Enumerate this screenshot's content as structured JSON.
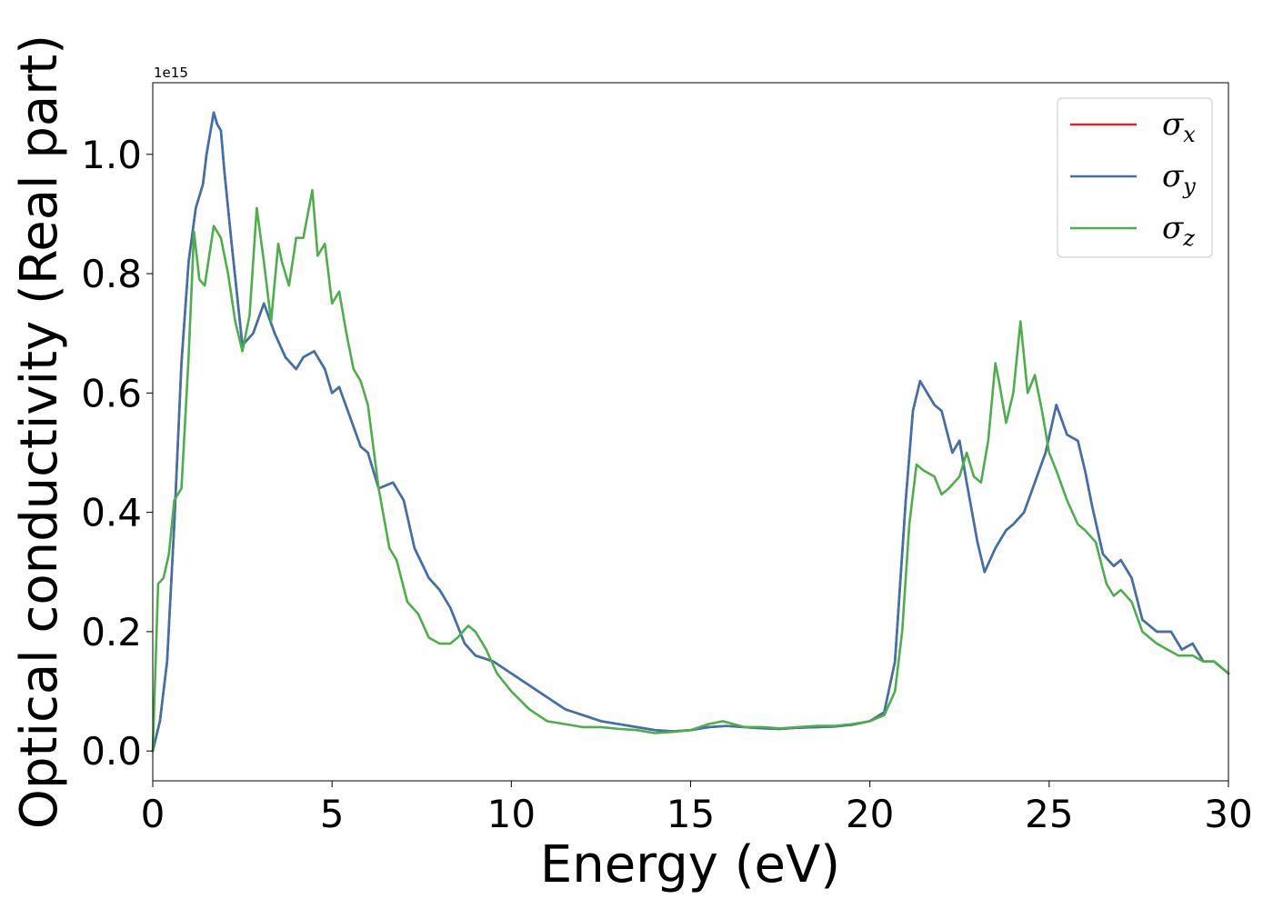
{
  "chart_data": {
    "type": "line",
    "xlabel": "Energy (eV)",
    "ylabel": "Optical conductivity (Real part)",
    "offset_text": "1e15",
    "xlim": [
      0,
      30
    ],
    "ylim": [
      -0.05,
      1.12
    ],
    "x_ticks": [
      0,
      5,
      10,
      15,
      20,
      25,
      30
    ],
    "x_tick_labels": [
      "0",
      "5",
      "10",
      "15",
      "20",
      "25",
      "30"
    ],
    "y_ticks": [
      0.0,
      0.2,
      0.4,
      0.6,
      0.8,
      1.0
    ],
    "y_tick_labels": [
      "0.0",
      "0.2",
      "0.4",
      "0.6",
      "0.8",
      "1.0"
    ],
    "grid": false,
    "legend_position": "top-right",
    "series": [
      {
        "name": "σx",
        "legend_base": "σ",
        "legend_sub": "x",
        "color": "#d62728",
        "x": [
          0,
          0.2,
          0.4,
          0.6,
          0.8,
          1.0,
          1.2,
          1.4,
          1.5,
          1.7,
          1.8,
          1.9,
          2.0,
          2.2,
          2.5,
          2.8,
          3.1,
          3.4,
          3.7,
          4.0,
          4.2,
          4.5,
          4.8,
          5.0,
          5.2,
          5.5,
          5.8,
          6.0,
          6.3,
          6.7,
          7.0,
          7.3,
          7.7,
          8.0,
          8.3,
          8.7,
          9.0,
          9.5,
          10.0,
          10.5,
          11.0,
          11.5,
          12.0,
          12.5,
          13.0,
          13.5,
          14.0,
          14.5,
          15.0,
          15.5,
          16.0,
          16.5,
          17.0,
          17.5,
          18.0,
          18.5,
          19.0,
          19.5,
          20.0,
          20.4,
          20.7,
          21.0,
          21.2,
          21.4,
          21.6,
          21.8,
          22.0,
          22.3,
          22.5,
          22.7,
          23.0,
          23.2,
          23.5,
          23.8,
          24.0,
          24.3,
          24.6,
          24.9,
          25.2,
          25.5,
          25.8,
          26.0,
          26.2,
          26.5,
          26.8,
          27.0,
          27.3,
          27.6,
          28.0,
          28.4,
          28.7,
          29.0,
          29.3,
          29.6,
          30.0
        ],
        "values": [
          0.0,
          0.05,
          0.15,
          0.38,
          0.65,
          0.82,
          0.91,
          0.95,
          1.0,
          1.07,
          1.05,
          1.04,
          0.97,
          0.85,
          0.68,
          0.7,
          0.75,
          0.7,
          0.66,
          0.64,
          0.66,
          0.67,
          0.64,
          0.6,
          0.61,
          0.56,
          0.51,
          0.5,
          0.44,
          0.45,
          0.42,
          0.34,
          0.29,
          0.27,
          0.24,
          0.18,
          0.16,
          0.15,
          0.13,
          0.11,
          0.09,
          0.07,
          0.06,
          0.05,
          0.045,
          0.04,
          0.035,
          0.033,
          0.035,
          0.04,
          0.042,
          0.04,
          0.038,
          0.037,
          0.039,
          0.04,
          0.041,
          0.044,
          0.05,
          0.065,
          0.15,
          0.42,
          0.57,
          0.62,
          0.6,
          0.58,
          0.57,
          0.5,
          0.52,
          0.45,
          0.35,
          0.3,
          0.34,
          0.37,
          0.38,
          0.4,
          0.45,
          0.5,
          0.58,
          0.53,
          0.52,
          0.47,
          0.41,
          0.33,
          0.31,
          0.32,
          0.29,
          0.22,
          0.2,
          0.2,
          0.17,
          0.18,
          0.15,
          0.15,
          0.13
        ]
      },
      {
        "name": "σy",
        "legend_base": "σ",
        "legend_sub": "y",
        "color": "#3d72ad",
        "x": [
          0,
          0.2,
          0.4,
          0.6,
          0.8,
          1.0,
          1.2,
          1.4,
          1.5,
          1.7,
          1.8,
          1.9,
          2.0,
          2.2,
          2.5,
          2.8,
          3.1,
          3.4,
          3.7,
          4.0,
          4.2,
          4.5,
          4.8,
          5.0,
          5.2,
          5.5,
          5.8,
          6.0,
          6.3,
          6.7,
          7.0,
          7.3,
          7.7,
          8.0,
          8.3,
          8.7,
          9.0,
          9.5,
          10.0,
          10.5,
          11.0,
          11.5,
          12.0,
          12.5,
          13.0,
          13.5,
          14.0,
          14.5,
          15.0,
          15.5,
          16.0,
          16.5,
          17.0,
          17.5,
          18.0,
          18.5,
          19.0,
          19.5,
          20.0,
          20.4,
          20.7,
          21.0,
          21.2,
          21.4,
          21.6,
          21.8,
          22.0,
          22.3,
          22.5,
          22.7,
          23.0,
          23.2,
          23.5,
          23.8,
          24.0,
          24.3,
          24.6,
          24.9,
          25.2,
          25.5,
          25.8,
          26.0,
          26.2,
          26.5,
          26.8,
          27.0,
          27.3,
          27.6,
          28.0,
          28.4,
          28.7,
          29.0,
          29.3,
          29.6,
          30.0
        ],
        "values": [
          0.0,
          0.05,
          0.15,
          0.38,
          0.65,
          0.82,
          0.91,
          0.95,
          1.0,
          1.07,
          1.05,
          1.04,
          0.97,
          0.85,
          0.68,
          0.7,
          0.75,
          0.7,
          0.66,
          0.64,
          0.66,
          0.67,
          0.64,
          0.6,
          0.61,
          0.56,
          0.51,
          0.5,
          0.44,
          0.45,
          0.42,
          0.34,
          0.29,
          0.27,
          0.24,
          0.18,
          0.16,
          0.15,
          0.13,
          0.11,
          0.09,
          0.07,
          0.06,
          0.05,
          0.045,
          0.04,
          0.035,
          0.033,
          0.035,
          0.04,
          0.042,
          0.04,
          0.038,
          0.037,
          0.039,
          0.04,
          0.041,
          0.044,
          0.05,
          0.065,
          0.15,
          0.42,
          0.57,
          0.62,
          0.6,
          0.58,
          0.57,
          0.5,
          0.52,
          0.45,
          0.35,
          0.3,
          0.34,
          0.37,
          0.38,
          0.4,
          0.45,
          0.5,
          0.58,
          0.53,
          0.52,
          0.47,
          0.41,
          0.33,
          0.31,
          0.32,
          0.29,
          0.22,
          0.2,
          0.2,
          0.17,
          0.18,
          0.15,
          0.15,
          0.13
        ]
      },
      {
        "name": "σz",
        "legend_base": "σ",
        "legend_sub": "z",
        "color": "#4daf4a",
        "x": [
          0,
          0.15,
          0.3,
          0.45,
          0.6,
          0.8,
          1.0,
          1.15,
          1.3,
          1.45,
          1.7,
          1.9,
          2.1,
          2.3,
          2.5,
          2.7,
          2.9,
          3.1,
          3.3,
          3.5,
          3.6,
          3.8,
          4.0,
          4.2,
          4.45,
          4.6,
          4.8,
          5.0,
          5.2,
          5.4,
          5.6,
          5.8,
          6.0,
          6.3,
          6.6,
          6.8,
          7.1,
          7.4,
          7.7,
          8.0,
          8.3,
          8.5,
          8.8,
          9.0,
          9.3,
          9.6,
          10.0,
          10.5,
          11.0,
          11.5,
          12.0,
          12.5,
          13.0,
          13.5,
          14.0,
          14.5,
          15.0,
          15.5,
          15.9,
          16.5,
          17.0,
          17.5,
          18.0,
          18.5,
          19.0,
          19.5,
          20.0,
          20.4,
          20.7,
          20.9,
          21.1,
          21.3,
          21.5,
          21.8,
          22.0,
          22.2,
          22.5,
          22.7,
          22.9,
          23.1,
          23.3,
          23.5,
          23.6,
          23.8,
          24.0,
          24.2,
          24.4,
          24.6,
          24.8,
          25.0,
          25.2,
          25.5,
          25.8,
          26.0,
          26.3,
          26.6,
          26.8,
          27.0,
          27.3,
          27.6,
          28.0,
          28.3,
          28.6,
          29.0,
          29.3,
          29.6,
          30.0
        ],
        "values": [
          0.0,
          0.28,
          0.29,
          0.33,
          0.42,
          0.44,
          0.66,
          0.87,
          0.79,
          0.78,
          0.88,
          0.86,
          0.8,
          0.72,
          0.67,
          0.73,
          0.91,
          0.82,
          0.72,
          0.85,
          0.82,
          0.78,
          0.86,
          0.86,
          0.94,
          0.83,
          0.85,
          0.75,
          0.77,
          0.7,
          0.64,
          0.62,
          0.58,
          0.44,
          0.34,
          0.32,
          0.25,
          0.23,
          0.19,
          0.18,
          0.18,
          0.19,
          0.21,
          0.2,
          0.17,
          0.13,
          0.1,
          0.07,
          0.05,
          0.045,
          0.04,
          0.04,
          0.037,
          0.035,
          0.03,
          0.032,
          0.035,
          0.045,
          0.05,
          0.04,
          0.04,
          0.038,
          0.04,
          0.042,
          0.042,
          0.045,
          0.05,
          0.06,
          0.1,
          0.2,
          0.38,
          0.48,
          0.47,
          0.46,
          0.43,
          0.44,
          0.46,
          0.5,
          0.46,
          0.45,
          0.52,
          0.65,
          0.62,
          0.55,
          0.6,
          0.72,
          0.6,
          0.63,
          0.57,
          0.5,
          0.47,
          0.42,
          0.38,
          0.37,
          0.35,
          0.28,
          0.26,
          0.27,
          0.25,
          0.2,
          0.18,
          0.17,
          0.16,
          0.16,
          0.15,
          0.15,
          0.13
        ]
      }
    ]
  }
}
